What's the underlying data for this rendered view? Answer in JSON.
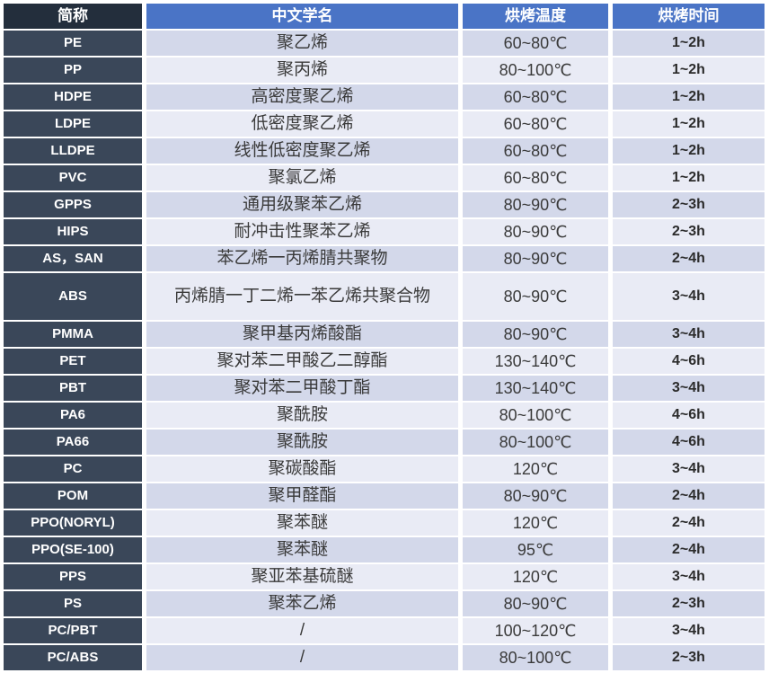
{
  "table": {
    "headers": {
      "abbr": "简称",
      "name": "中文学名",
      "temp": "烘烤温度",
      "time": "烘烤时间"
    },
    "rows": [
      {
        "abbr": "PE",
        "name": "聚乙烯",
        "temp": "60~80℃",
        "time": "1~2h"
      },
      {
        "abbr": "PP",
        "name": "聚丙烯",
        "temp": "80~100℃",
        "time": "1~2h"
      },
      {
        "abbr": "HDPE",
        "name": "高密度聚乙烯",
        "temp": "60~80℃",
        "time": "1~2h"
      },
      {
        "abbr": "LDPE",
        "name": "低密度聚乙烯",
        "temp": "60~80℃",
        "time": "1~2h"
      },
      {
        "abbr": "LLDPE",
        "name": "线性低密度聚乙烯",
        "temp": "60~80℃",
        "time": "1~2h"
      },
      {
        "abbr": "PVC",
        "name": "聚氯乙烯",
        "temp": "60~80℃",
        "time": "1~2h"
      },
      {
        "abbr": "GPPS",
        "name": "通用级聚苯乙烯",
        "temp": "80~90℃",
        "time": "2~3h"
      },
      {
        "abbr": "HIPS",
        "name": "耐冲击性聚苯乙烯",
        "temp": "80~90℃",
        "time": "2~3h"
      },
      {
        "abbr": "AS，SAN",
        "name": "苯乙烯一丙烯腈共聚物",
        "temp": "80~90℃",
        "time": "2~4h"
      },
      {
        "abbr": "ABS",
        "name": "丙烯腈一丁二烯一苯乙烯共聚合物",
        "temp": "80~90℃",
        "time": "3~4h",
        "tall": true
      },
      {
        "abbr": "PMMA",
        "name": "聚甲基丙烯酸酯",
        "temp": "80~90℃",
        "time": "3~4h"
      },
      {
        "abbr": "PET",
        "name": "聚对苯二甲酸乙二醇酯",
        "temp": "130~140℃",
        "time": "4~6h"
      },
      {
        "abbr": "PBT",
        "name": "聚对苯二甲酸丁酯",
        "temp": "130~140℃",
        "time": "3~4h"
      },
      {
        "abbr": "PA6",
        "name": "聚酰胺",
        "temp": "80~100℃",
        "time": "4~6h"
      },
      {
        "abbr": "PA66",
        "name": "聚酰胺",
        "temp": "80~100℃",
        "time": "4~6h"
      },
      {
        "abbr": "PC",
        "name": "聚碳酸酯",
        "temp": "120℃",
        "time": "3~4h"
      },
      {
        "abbr": "POM",
        "name": "聚甲醛酯",
        "temp": "80~90℃",
        "time": "2~4h"
      },
      {
        "abbr": "PPO(NORYL)",
        "name": "聚苯醚",
        "temp": "120℃",
        "time": "2~4h"
      },
      {
        "abbr": "PPO(SE-100)",
        "name": "聚苯醚",
        "temp": "95℃",
        "time": "2~4h"
      },
      {
        "abbr": "PPS",
        "name": "聚亚苯基硫醚",
        "temp": "120℃",
        "time": "3~4h"
      },
      {
        "abbr": "PS",
        "name": "聚苯乙烯",
        "temp": "80~90℃",
        "time": "2~3h"
      },
      {
        "abbr": "PC/PBT",
        "name": "/",
        "temp": "100~120℃",
        "time": "3~4h"
      },
      {
        "abbr": "PC/ABS",
        "name": "/",
        "temp": "80~100℃",
        "time": "2~3h"
      }
    ]
  },
  "colors": {
    "header_dark": "#232e3c",
    "header_blue": "#4a74c6",
    "abbr_column": "#3a4759",
    "row_tinted": "#d3d8ea",
    "row_light": "#e9ebf5",
    "header_text": "#ffffff",
    "body_text": "#3a3a3a"
  }
}
